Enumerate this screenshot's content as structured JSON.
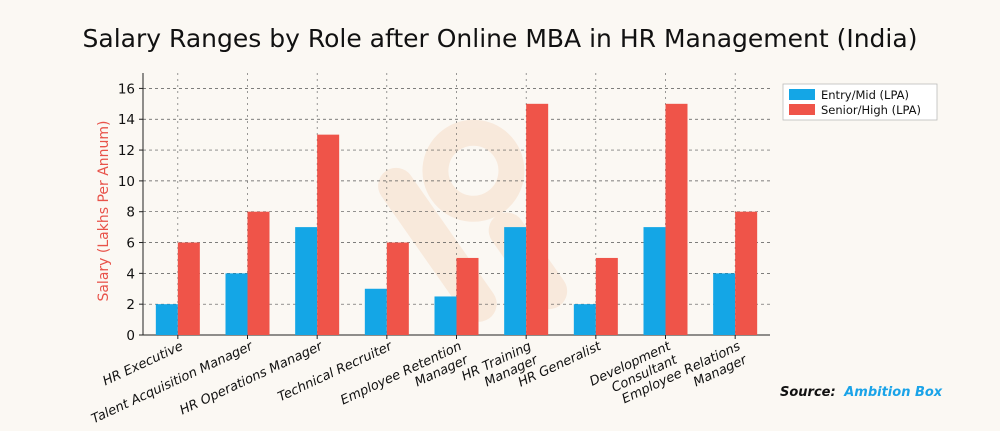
{
  "chart_data": {
    "type": "bar",
    "title": "Salary Ranges by Role after Online MBA in HR Management (India)",
    "ylabel": "Salary (Lakhs Per Annum)",
    "xlabel": "",
    "ylim": [
      0,
      17
    ],
    "yticks": [
      0,
      2,
      4,
      6,
      8,
      10,
      12,
      14,
      16
    ],
    "grid": true,
    "legend_position": "top-right",
    "categories": [
      [
        "HR Executive"
      ],
      [
        "Talent Acquisition Manager"
      ],
      [
        "HR Operations Manager"
      ],
      [
        "Technical Recruiter"
      ],
      [
        "Employee Retention",
        "Manager"
      ],
      [
        "HR Training",
        "Manager"
      ],
      [
        "HR Generalist"
      ],
      [
        "Development",
        "Consultant"
      ],
      [
        "Employee Relations",
        "Manager"
      ]
    ],
    "series": [
      {
        "name": "Entry/Mid (LPA)",
        "color": "#14a6e6",
        "values": [
          2,
          4,
          7,
          3,
          2.5,
          7,
          2,
          7,
          4
        ]
      },
      {
        "name": "Senior/High (LPA)",
        "color": "#ef5449",
        "values": [
          6,
          8,
          13,
          6,
          5,
          15,
          5,
          15,
          8
        ]
      }
    ],
    "source_label": "Source:",
    "source_value": "Ambition Box"
  }
}
